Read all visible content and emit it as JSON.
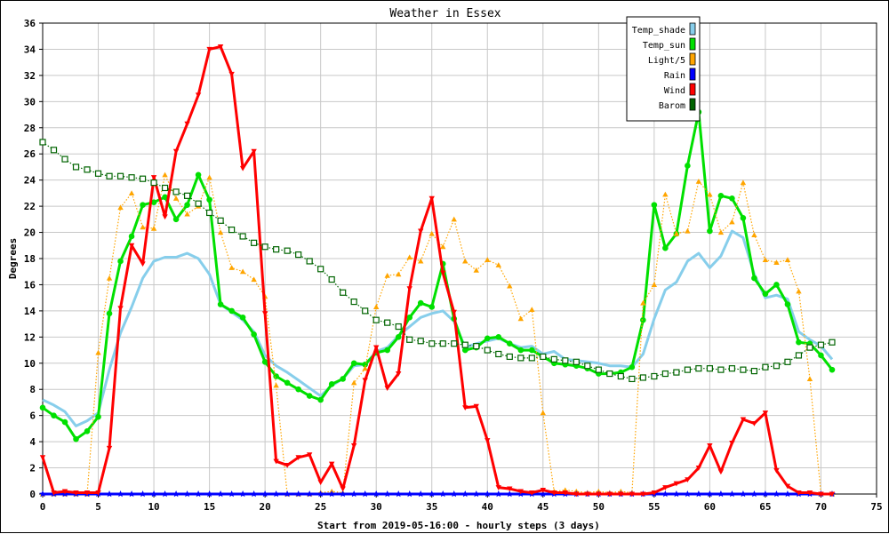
{
  "chart_data": {
    "type": "line",
    "title": "Weather in Essex",
    "xlabel": "Start from 2019-05-16:00 - hourly steps (3 days)",
    "ylabel": "Degrees",
    "xlim": [
      0,
      75
    ],
    "ylim": [
      0,
      36
    ],
    "x_ticks": [
      0,
      5,
      10,
      15,
      20,
      25,
      30,
      35,
      40,
      45,
      50,
      55,
      60,
      65,
      70,
      75
    ],
    "y_ticks": [
      0,
      2,
      4,
      6,
      8,
      10,
      12,
      14,
      16,
      18,
      20,
      22,
      24,
      26,
      28,
      30,
      32,
      34,
      36
    ],
    "grid": true,
    "legend_position": "top-right",
    "x": [
      0,
      1,
      2,
      3,
      4,
      5,
      6,
      7,
      8,
      9,
      10,
      11,
      12,
      13,
      14,
      15,
      16,
      17,
      18,
      19,
      20,
      21,
      22,
      23,
      24,
      25,
      26,
      27,
      28,
      29,
      30,
      31,
      32,
      33,
      34,
      35,
      36,
      37,
      38,
      39,
      40,
      41,
      42,
      43,
      44,
      45,
      46,
      47,
      48,
      49,
      50,
      51,
      52,
      53,
      54,
      55,
      56,
      57,
      58,
      59,
      60,
      61,
      62,
      63,
      64,
      65,
      66,
      67,
      68,
      69,
      70,
      71
    ],
    "series": [
      {
        "name": "Temp_shade",
        "color": "#87ceeb",
        "style": "solid",
        "marker": "none",
        "values": [
          7.2,
          6.8,
          6.3,
          5.2,
          5.6,
          6.2,
          9.5,
          12.3,
          14.3,
          16.5,
          17.8,
          18.1,
          18.1,
          18.4,
          18.0,
          16.8,
          14.5,
          13.9,
          13.3,
          12.4,
          10.6,
          9.8,
          9.3,
          8.7,
          8.1,
          7.5,
          8.3,
          8.8,
          9.8,
          9.9,
          10.9,
          11.2,
          12.1,
          12.8,
          13.5,
          13.8,
          14.0,
          13.2,
          11.2,
          11.5,
          11.7,
          11.9,
          11.5,
          11.2,
          11.3,
          10.7,
          10.9,
          10.3,
          10.2,
          10.1,
          10.0,
          9.8,
          9.8,
          9.7,
          10.7,
          13.4,
          15.6,
          16.2,
          17.8,
          18.4,
          17.3,
          18.2,
          20.1,
          19.6,
          16.8,
          15.0,
          15.2,
          14.9,
          12.4,
          11.8,
          11.3,
          10.3
        ]
      },
      {
        "name": "Temp_sun",
        "color": "#00e000",
        "style": "solid",
        "marker": "circle",
        "values": [
          6.6,
          6.0,
          5.5,
          4.2,
          4.8,
          5.9,
          13.8,
          17.8,
          19.7,
          22.1,
          22.3,
          22.7,
          21.0,
          22.1,
          24.4,
          22.5,
          14.5,
          14.0,
          13.5,
          12.2,
          10.1,
          9.0,
          8.5,
          8.0,
          7.5,
          7.2,
          8.4,
          8.8,
          10.0,
          9.9,
          10.8,
          11.0,
          12.0,
          13.5,
          14.6,
          14.3,
          17.6,
          13.4,
          11.0,
          11.2,
          11.9,
          12.0,
          11.5,
          11.0,
          11.0,
          10.5,
          10.0,
          9.9,
          9.8,
          9.6,
          9.2,
          9.2,
          9.3,
          9.7,
          13.3,
          22.1,
          18.8,
          19.9,
          25.1,
          29.2,
          20.1,
          22.8,
          22.6,
          21.1,
          16.5,
          15.3,
          16.0,
          14.5,
          11.6,
          11.5,
          10.6,
          9.5
        ]
      },
      {
        "name": "Light/5",
        "color": "#ffa500",
        "style": "dotted",
        "marker": "triangle-up",
        "values": [
          0,
          0,
          0,
          0,
          0,
          10.8,
          16.5,
          21.9,
          23.0,
          20.4,
          20.3,
          24.4,
          22.6,
          21.4,
          22.0,
          24.2,
          20.0,
          17.3,
          17.0,
          16.4,
          15.1,
          8.3,
          0,
          0,
          0,
          0.1,
          0.2,
          0.1,
          8.5,
          9.6,
          14.3,
          16.7,
          16.8,
          18.1,
          17.8,
          19.9,
          18.9,
          21.0,
          17.8,
          17.1,
          17.9,
          17.5,
          15.9,
          13.4,
          14.1,
          6.2,
          0.2,
          0.3,
          0.2,
          0.1,
          0.2,
          0.1,
          0.2,
          0.1,
          14.6,
          16.0,
          22.9,
          19.9,
          20.1,
          23.9,
          22.9,
          20.0,
          20.8,
          23.8,
          19.8,
          17.9,
          17.7,
          17.9,
          15.5,
          8.8,
          0,
          0
        ]
      },
      {
        "name": "Rain",
        "color": "#0000ff",
        "style": "solid",
        "marker": "star",
        "values": [
          0,
          0,
          0,
          0,
          0,
          0,
          0,
          0,
          0,
          0,
          0,
          0,
          0,
          0,
          0,
          0,
          0,
          0,
          0,
          0,
          0,
          0,
          0,
          0,
          0,
          0,
          0,
          0,
          0,
          0,
          0,
          0,
          0,
          0,
          0,
          0,
          0,
          0,
          0,
          0,
          0,
          0,
          0,
          0,
          0,
          0,
          0,
          0,
          0,
          0,
          0,
          0,
          0,
          0,
          0,
          0,
          0,
          0,
          0,
          0,
          0,
          0,
          0,
          0,
          0,
          0,
          0,
          0,
          0,
          0,
          0,
          0
        ]
      },
      {
        "name": "Wind",
        "color": "#ff0000",
        "style": "solid",
        "marker": "triangle-down",
        "values": [
          2.8,
          0.1,
          0.2,
          0.1,
          0.1,
          0.1,
          3.5,
          14.2,
          19.0,
          17.6,
          24.2,
          21.2,
          26.2,
          28.3,
          30.5,
          34.0,
          34.2,
          32.1,
          24.9,
          26.2,
          13.8,
          2.5,
          2.2,
          2.8,
          3.0,
          0.9,
          2.3,
          0.4,
          3.7,
          8.7,
          11.2,
          8.1,
          9.2,
          15.7,
          20.1,
          22.6,
          16.9,
          13.9,
          6.6,
          6.7,
          4.1,
          0.5,
          0.4,
          0.2,
          0.1,
          0.3,
          0.1,
          0.1,
          0,
          0,
          0,
          0,
          0,
          0,
          0,
          0.1,
          0.5,
          0.8,
          1.1,
          2.0,
          3.7,
          1.7,
          3.9,
          5.7,
          5.4,
          6.2,
          1.8,
          0.6,
          0.1,
          0.1,
          0,
          0
        ]
      },
      {
        "name": "Barom",
        "color": "#006400",
        "style": "dotted",
        "marker": "square",
        "values": [
          26.9,
          26.3,
          25.6,
          25.0,
          24.8,
          24.5,
          24.3,
          24.3,
          24.2,
          24.1,
          23.8,
          23.4,
          23.1,
          22.8,
          22.2,
          21.5,
          20.9,
          20.2,
          19.7,
          19.2,
          18.9,
          18.7,
          18.6,
          18.3,
          17.8,
          17.2,
          16.4,
          15.4,
          14.7,
          14.0,
          13.3,
          13.1,
          12.8,
          11.8,
          11.7,
          11.5,
          11.5,
          11.5,
          11.4,
          11.3,
          11.0,
          10.7,
          10.5,
          10.4,
          10.4,
          10.5,
          10.3,
          10.2,
          10.1,
          9.8,
          9.5,
          9.2,
          9.0,
          8.8,
          8.9,
          9.0,
          9.2,
          9.3,
          9.5,
          9.6,
          9.6,
          9.5,
          9.6,
          9.5,
          9.4,
          9.7,
          9.8,
          10.1,
          10.6,
          11.2,
          11.4,
          11.6
        ]
      }
    ]
  }
}
